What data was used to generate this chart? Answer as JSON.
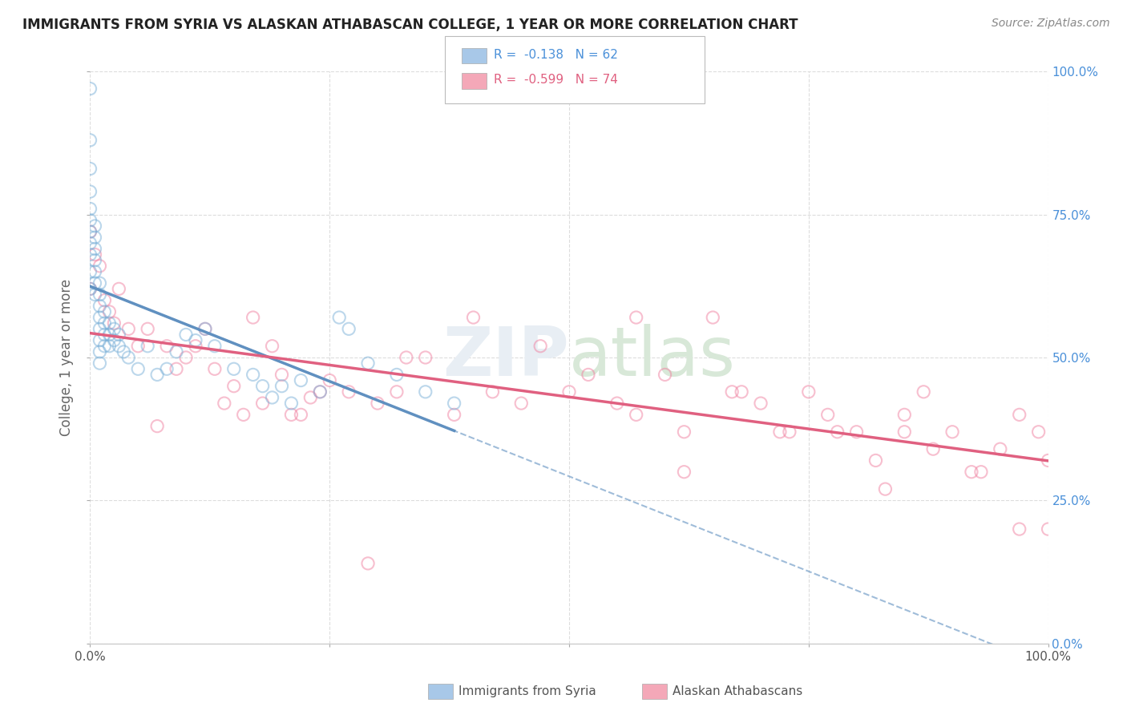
{
  "title": "IMMIGRANTS FROM SYRIA VS ALASKAN ATHABASCAN COLLEGE, 1 YEAR OR MORE CORRELATION CHART",
  "source": "Source: ZipAtlas.com",
  "ylabel": "College, 1 year or more",
  "xlim": [
    0.0,
    1.0
  ],
  "ylim": [
    0.0,
    1.0
  ],
  "xticks": [
    0.0,
    0.25,
    0.5,
    0.75,
    1.0
  ],
  "yticks": [
    0.0,
    0.25,
    0.5,
    0.75,
    1.0
  ],
  "xticklabels": [
    "0.0%",
    "",
    "",
    "",
    "100.0%"
  ],
  "yticklabels_right": [
    "0.0%",
    "25.0%",
    "50.0%",
    "75.0%",
    "100.0%"
  ],
  "background_color": "#ffffff",
  "grid_color": "#dddddd",
  "legend_R1": "-0.138",
  "legend_N1": "62",
  "legend_R2": "-0.599",
  "legend_N2": "74",
  "color1": "#a8c8e8",
  "color2": "#f4a8b8",
  "series1_color": "#7ab0d8",
  "series2_color": "#f080a0",
  "trendline1_color": "#6090c0",
  "trendline2_color": "#e06080",
  "series1_x": [
    0.0,
    0.0,
    0.0,
    0.0,
    0.0,
    0.0,
    0.0,
    0.0,
    0.0,
    0.0,
    0.0,
    0.005,
    0.005,
    0.005,
    0.005,
    0.005,
    0.005,
    0.005,
    0.01,
    0.01,
    0.01,
    0.01,
    0.01,
    0.01,
    0.01,
    0.01,
    0.015,
    0.015,
    0.015,
    0.015,
    0.02,
    0.02,
    0.02,
    0.025,
    0.025,
    0.03,
    0.03,
    0.035,
    0.04,
    0.05,
    0.06,
    0.07,
    0.08,
    0.09,
    0.1,
    0.11,
    0.12,
    0.13,
    0.15,
    0.17,
    0.18,
    0.19,
    0.2,
    0.21,
    0.22,
    0.24,
    0.26,
    0.27,
    0.29,
    0.32,
    0.35,
    0.38
  ],
  "series1_y": [
    0.97,
    0.88,
    0.83,
    0.79,
    0.76,
    0.74,
    0.72,
    0.7,
    0.68,
    0.65,
    0.62,
    0.73,
    0.71,
    0.69,
    0.67,
    0.65,
    0.63,
    0.61,
    0.63,
    0.61,
    0.59,
    0.57,
    0.55,
    0.53,
    0.51,
    0.49,
    0.58,
    0.56,
    0.54,
    0.52,
    0.56,
    0.54,
    0.52,
    0.55,
    0.53,
    0.54,
    0.52,
    0.51,
    0.5,
    0.48,
    0.52,
    0.47,
    0.48,
    0.51,
    0.54,
    0.53,
    0.55,
    0.52,
    0.48,
    0.47,
    0.45,
    0.43,
    0.45,
    0.42,
    0.46,
    0.44,
    0.57,
    0.55,
    0.49,
    0.47,
    0.44,
    0.42
  ],
  "series2_x": [
    0.0,
    0.0,
    0.005,
    0.01,
    0.015,
    0.02,
    0.025,
    0.03,
    0.04,
    0.05,
    0.06,
    0.07,
    0.08,
    0.09,
    0.1,
    0.11,
    0.12,
    0.13,
    0.14,
    0.15,
    0.16,
    0.17,
    0.18,
    0.19,
    0.2,
    0.21,
    0.22,
    0.23,
    0.24,
    0.25,
    0.27,
    0.29,
    0.3,
    0.32,
    0.33,
    0.35,
    0.38,
    0.4,
    0.42,
    0.45,
    0.47,
    0.5,
    0.52,
    0.55,
    0.57,
    0.6,
    0.62,
    0.65,
    0.67,
    0.7,
    0.72,
    0.75,
    0.77,
    0.8,
    0.82,
    0.85,
    0.87,
    0.9,
    0.92,
    0.95,
    0.97,
    1.0,
    0.57,
    0.62,
    0.68,
    0.73,
    0.78,
    0.83,
    0.88,
    0.93,
    0.97,
    0.99,
    1.0,
    0.85
  ],
  "series2_y": [
    0.72,
    0.62,
    0.68,
    0.66,
    0.6,
    0.58,
    0.56,
    0.62,
    0.55,
    0.52,
    0.55,
    0.38,
    0.52,
    0.48,
    0.5,
    0.52,
    0.55,
    0.48,
    0.42,
    0.45,
    0.4,
    0.57,
    0.42,
    0.52,
    0.47,
    0.4,
    0.4,
    0.43,
    0.44,
    0.46,
    0.44,
    0.14,
    0.42,
    0.44,
    0.5,
    0.5,
    0.4,
    0.57,
    0.44,
    0.42,
    0.52,
    0.44,
    0.47,
    0.42,
    0.4,
    0.47,
    0.37,
    0.57,
    0.44,
    0.42,
    0.37,
    0.44,
    0.4,
    0.37,
    0.32,
    0.4,
    0.44,
    0.37,
    0.3,
    0.34,
    0.4,
    0.32,
    0.57,
    0.3,
    0.44,
    0.37,
    0.37,
    0.27,
    0.34,
    0.3,
    0.2,
    0.37,
    0.2,
    0.37
  ]
}
